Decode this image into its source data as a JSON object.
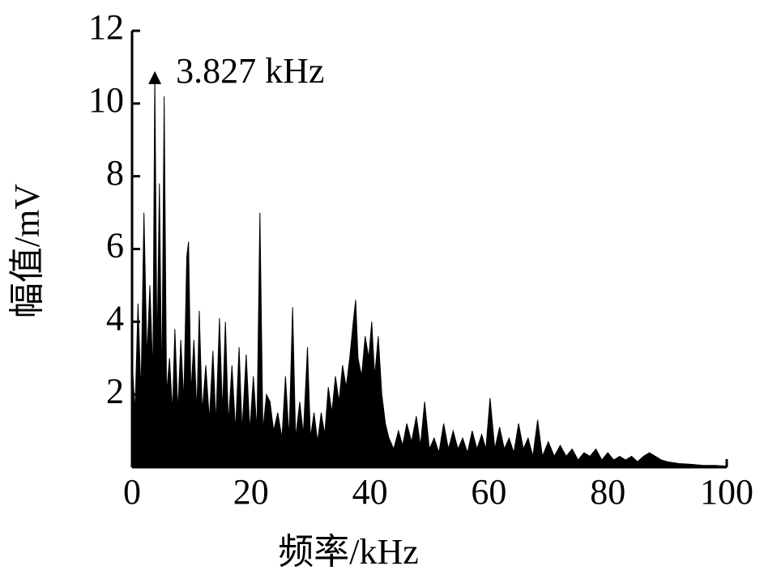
{
  "chart_data": {
    "type": "area",
    "x_label": "频率/kHz",
    "y_label": "幅值/mV",
    "annotation": {
      "text": "3.827 kHz",
      "x": 3.827,
      "y": 10.8
    },
    "color": "#000000",
    "xlim": [
      0,
      100
    ],
    "xticks": [
      0,
      20,
      40,
      60,
      80,
      100
    ],
    "ylim": [
      0,
      12
    ],
    "yticks": [
      2,
      4,
      6,
      8,
      10,
      12
    ],
    "x": [
      0,
      0.5,
      1,
      1.5,
      2,
      2.5,
      3,
      3.5,
      3.827,
      4.2,
      4.6,
      5,
      5.4,
      5.8,
      6.3,
      6.8,
      7.2,
      7.7,
      8.2,
      8.7,
      9.2,
      9.5,
      9.9,
      10.4,
      10.9,
      11.3,
      11.8,
      12.4,
      13,
      13.6,
      14.1,
      14.7,
      15.2,
      15.7,
      16.2,
      16.8,
      17.4,
      18,
      18.5,
      19.2,
      19.8,
      20.4,
      21,
      21.5,
      22,
      22.6,
      23.2,
      23.8,
      24.5,
      25.2,
      25.8,
      26.4,
      27,
      27.5,
      28.2,
      28.8,
      29.5,
      30,
      30.6,
      31.2,
      31.8,
      32.4,
      33,
      33.6,
      34.2,
      34.8,
      35.4,
      36,
      36.6,
      37.2,
      37.6,
      38,
      38.6,
      39.2,
      39.8,
      40.3,
      40.8,
      41.4,
      42,
      42.6,
      43.2,
      44,
      44.8,
      45.5,
      46.2,
      47,
      47.8,
      48.5,
      49.2,
      50,
      50.8,
      51.6,
      52.4,
      53.2,
      54,
      54.8,
      55.6,
      56.4,
      57.2,
      58,
      58.8,
      59.5,
      60.2,
      61,
      61.8,
      62.6,
      63.4,
      64.2,
      65,
      65.8,
      66.6,
      67.4,
      68.2,
      69,
      70,
      71,
      72,
      73,
      74,
      75,
      76,
      77,
      78,
      79,
      80,
      81,
      82,
      83,
      84,
      85,
      86,
      87,
      88,
      89,
      90,
      92,
      94,
      96,
      98,
      100
    ],
    "values": [
      3,
      1.5,
      4.5,
      2,
      7,
      3,
      5,
      2.5,
      10.8,
      3,
      7.8,
      2,
      10.2,
      2,
      3,
      1.5,
      3.8,
      1.5,
      3.5,
      1.8,
      5.8,
      6.2,
      2,
      3.5,
      1.5,
      4.3,
      1.5,
      2.8,
      1.3,
      3.2,
      1.2,
      4.1,
      1.5,
      4,
      1.2,
      2.8,
      1,
      3.3,
      1,
      3.1,
      1,
      2.5,
      1,
      7,
      1,
      2,
      1.8,
      1,
      1.5,
      0.8,
      2.5,
      0.8,
      4.4,
      0.8,
      1.8,
      0.9,
      3.3,
      0.8,
      1.5,
      0.7,
      1.5,
      0.9,
      2.2,
      1.5,
      2.5,
      1.8,
      2.8,
      2.2,
      3,
      4,
      4.6,
      3,
      2.5,
      3.6,
      3,
      4,
      2.5,
      3.6,
      2,
      1.2,
      0.8,
      0.5,
      1,
      0.6,
      1.2,
      0.7,
      1.4,
      0.6,
      1.8,
      0.5,
      0.8,
      0.4,
      1.2,
      0.5,
      1,
      0.5,
      0.8,
      0.4,
      1,
      0.5,
      0.9,
      0.5,
      1.9,
      0.5,
      1.1,
      0.5,
      0.8,
      0.4,
      1.2,
      0.5,
      0.8,
      0.3,
      1.3,
      0.3,
      0.7,
      0.3,
      0.6,
      0.3,
      0.5,
      0.2,
      0.4,
      0.3,
      0.5,
      0.2,
      0.4,
      0.2,
      0.3,
      0.2,
      0.3,
      0.15,
      0.3,
      0.4,
      0.3,
      0.2,
      0.15,
      0.1,
      0.08,
      0.05,
      0.05,
      0.03
    ]
  }
}
